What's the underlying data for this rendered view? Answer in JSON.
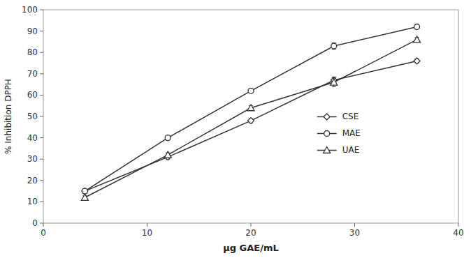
{
  "chart_data": {
    "type": "line",
    "x": [
      4,
      12,
      20,
      28,
      36
    ],
    "series": [
      {
        "name": "CSE",
        "color": "#333333",
        "marker": "diamond",
        "values": [
          15,
          31,
          48,
          67,
          76
        ],
        "errors": [
          1,
          1,
          1,
          1.5,
          1
        ]
      },
      {
        "name": "MAE",
        "color": "#333333",
        "marker": "circle",
        "values": [
          15,
          40,
          62,
          83,
          92
        ],
        "errors": [
          1,
          1,
          1,
          1.5,
          1
        ]
      },
      {
        "name": "UAE",
        "color": "#333333",
        "marker": "triangle",
        "values": [
          12,
          32,
          54,
          66,
          86
        ],
        "errors": [
          1,
          1,
          1,
          2,
          1
        ]
      }
    ],
    "xlabel": "μg GAE/mL",
    "ylabel": "% Inhibition DPPH",
    "xlim": [
      0,
      40
    ],
    "ylim": [
      0,
      100
    ],
    "xticks": [
      0,
      10,
      20,
      30,
      40
    ],
    "yticks": [
      0,
      10,
      20,
      30,
      40,
      50,
      60,
      70,
      80,
      90,
      100
    ],
    "grid": false,
    "legend": "right"
  }
}
